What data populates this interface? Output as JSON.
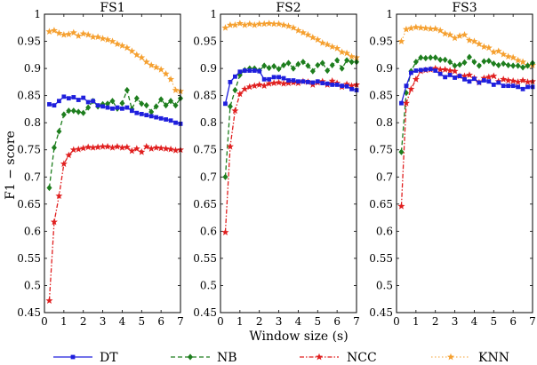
{
  "chart_data": {
    "type": "line",
    "ylabel": "F1 − score",
    "xlabel": "Window size (s)",
    "ylim": [
      0.45,
      1.0
    ],
    "xlim": [
      0,
      7
    ],
    "yticks": [
      0.45,
      0.5,
      0.55,
      0.6,
      0.65,
      0.7,
      0.75,
      0.8,
      0.85,
      0.9,
      0.95,
      1
    ],
    "yticklabels": [
      "0.45",
      "0.5",
      "0.55",
      "0.6",
      "0.65",
      "0.7",
      "0.75",
      "0.8",
      "0.85",
      "0.9",
      "0.95",
      "1"
    ],
    "xticks": [
      0,
      1,
      2,
      3,
      4,
      5,
      6,
      7
    ],
    "xticklabels": [
      "0",
      "1",
      "2",
      "3",
      "4",
      "5",
      "6",
      "7"
    ],
    "grid": false,
    "legend": {
      "placement": "bottom",
      "entries": [
        {
          "name": "DT",
          "color": "#1f1fdd",
          "marker": "square",
          "dash": "solid"
        },
        {
          "name": "NB",
          "color": "#1e7e1e",
          "marker": "diamond",
          "dash": "dashed"
        },
        {
          "name": "NCC",
          "color": "#e01f1f",
          "marker": "star",
          "dash": "dashdot"
        },
        {
          "name": "KNN",
          "color": "#f5a030",
          "marker": "star",
          "dash": "dotted"
        }
      ]
    },
    "x": [
      0.25,
      0.5,
      0.75,
      1.0,
      1.25,
      1.5,
      1.75,
      2.0,
      2.25,
      2.5,
      2.75,
      3.0,
      3.25,
      3.5,
      3.75,
      4.0,
      4.25,
      4.5,
      4.75,
      5.0,
      5.25,
      5.5,
      5.75,
      6.0,
      6.25,
      6.5,
      6.75,
      7.0
    ],
    "panels": [
      {
        "title": "FS1",
        "series": [
          {
            "name": "DT",
            "values": [
              0.834,
              0.832,
              0.84,
              0.848,
              0.845,
              0.847,
              0.842,
              0.846,
              0.838,
              0.84,
              0.832,
              0.83,
              0.828,
              0.826,
              0.828,
              0.826,
              0.828,
              0.822,
              0.818,
              0.816,
              0.814,
              0.812,
              0.81,
              0.808,
              0.806,
              0.804,
              0.8,
              0.798
            ]
          },
          {
            "name": "NB",
            "values": [
              0.68,
              0.754,
              0.784,
              0.815,
              0.822,
              0.822,
              0.82,
              0.818,
              0.828,
              0.84,
              0.83,
              0.834,
              0.835,
              0.84,
              0.826,
              0.836,
              0.86,
              0.825,
              0.845,
              0.835,
              0.832,
              0.82,
              0.83,
              0.843,
              0.832,
              0.84,
              0.832,
              0.845
            ]
          },
          {
            "name": "NCC",
            "values": [
              0.472,
              0.617,
              0.665,
              0.724,
              0.74,
              0.75,
              0.751,
              0.753,
              0.755,
              0.754,
              0.755,
              0.756,
              0.756,
              0.754,
              0.756,
              0.754,
              0.755,
              0.748,
              0.752,
              0.746,
              0.756,
              0.752,
              0.754,
              0.753,
              0.752,
              0.751,
              0.749,
              0.75
            ]
          },
          {
            "name": "KNN",
            "values": [
              0.968,
              0.97,
              0.965,
              0.962,
              0.963,
              0.966,
              0.96,
              0.964,
              0.962,
              0.958,
              0.958,
              0.955,
              0.953,
              0.95,
              0.945,
              0.942,
              0.938,
              0.932,
              0.925,
              0.92,
              0.912,
              0.906,
              0.902,
              0.898,
              0.89,
              0.88,
              0.86,
              0.858
            ]
          }
        ]
      },
      {
        "title": "FS2",
        "series": [
          {
            "name": "DT",
            "values": [
              0.835,
              0.875,
              0.885,
              0.894,
              0.896,
              0.896,
              0.896,
              0.895,
              0.88,
              0.88,
              0.884,
              0.884,
              0.882,
              0.878,
              0.878,
              0.876,
              0.876,
              0.875,
              0.874,
              0.876,
              0.873,
              0.872,
              0.87,
              0.87,
              0.868,
              0.867,
              0.862,
              0.86
            ]
          },
          {
            "name": "NB",
            "values": [
              0.7,
              0.83,
              0.86,
              0.888,
              0.897,
              0.9,
              0.9,
              0.896,
              0.905,
              0.901,
              0.904,
              0.899,
              0.906,
              0.91,
              0.9,
              0.908,
              0.912,
              0.905,
              0.895,
              0.906,
              0.91,
              0.896,
              0.906,
              0.915,
              0.9,
              0.915,
              0.912,
              0.912
            ]
          },
          {
            "name": "NCC",
            "values": [
              0.598,
              0.756,
              0.822,
              0.853,
              0.862,
              0.866,
              0.868,
              0.87,
              0.868,
              0.872,
              0.873,
              0.874,
              0.872,
              0.873,
              0.874,
              0.873,
              0.876,
              0.875,
              0.87,
              0.874,
              0.876,
              0.87,
              0.877,
              0.873,
              0.866,
              0.871,
              0.868,
              0.87
            ]
          },
          {
            "name": "KNN",
            "values": [
              0.975,
              0.98,
              0.98,
              0.983,
              0.98,
              0.982,
              0.98,
              0.982,
              0.982,
              0.983,
              0.982,
              0.982,
              0.98,
              0.978,
              0.975,
              0.97,
              0.966,
              0.962,
              0.957,
              0.953,
              0.947,
              0.944,
              0.94,
              0.937,
              0.93,
              0.928,
              0.922,
              0.92
            ]
          }
        ]
      },
      {
        "title": "FS3",
        "series": [
          {
            "name": "DT",
            "values": [
              0.836,
              0.868,
              0.892,
              0.896,
              0.897,
              0.898,
              0.899,
              0.896,
              0.89,
              0.884,
              0.888,
              0.883,
              0.886,
              0.88,
              0.876,
              0.881,
              0.874,
              0.878,
              0.876,
              0.87,
              0.874,
              0.868,
              0.868,
              0.868,
              0.866,
              0.862,
              0.866,
              0.866
            ]
          },
          {
            "name": "NB",
            "values": [
              0.746,
              0.855,
              0.895,
              0.912,
              0.92,
              0.919,
              0.92,
              0.92,
              0.916,
              0.916,
              0.912,
              0.905,
              0.907,
              0.911,
              0.921,
              0.912,
              0.905,
              0.913,
              0.914,
              0.909,
              0.906,
              0.909,
              0.906,
              0.905,
              0.905,
              0.902,
              0.905,
              0.91
            ]
          },
          {
            "name": "NCC",
            "values": [
              0.646,
              0.836,
              0.862,
              0.88,
              0.895,
              0.897,
              0.898,
              0.9,
              0.898,
              0.898,
              0.896,
              0.895,
              0.886,
              0.886,
              0.888,
              0.882,
              0.874,
              0.882,
              0.884,
              0.886,
              0.876,
              0.88,
              0.878,
              0.877,
              0.875,
              0.878,
              0.875,
              0.876
            ]
          },
          {
            "name": "KNN",
            "values": [
              0.95,
              0.972,
              0.974,
              0.976,
              0.975,
              0.974,
              0.973,
              0.973,
              0.97,
              0.964,
              0.962,
              0.956,
              0.96,
              0.962,
              0.952,
              0.95,
              0.945,
              0.94,
              0.938,
              0.93,
              0.932,
              0.926,
              0.922,
              0.92,
              0.915,
              0.912,
              0.906,
              0.906
            ]
          }
        ]
      }
    ]
  }
}
